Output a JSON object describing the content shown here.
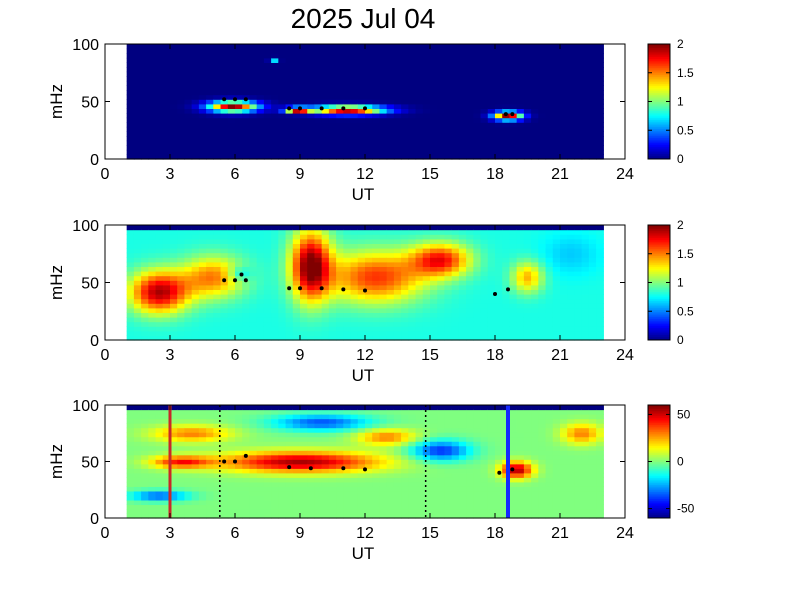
{
  "figure": {
    "title": "2025 Jul 04"
  },
  "chart_data": [
    {
      "type": "heatmap",
      "xlabel": "UT",
      "ylabel": "mHz",
      "xlim": [
        0,
        24
      ],
      "ylim": [
        0,
        100
      ],
      "x_ticks": [
        "0",
        "3",
        "6",
        "9",
        "12",
        "15",
        "18",
        "21",
        "24"
      ],
      "y_ticks": [
        "0",
        "50",
        "100"
      ],
      "data_x_range": [
        1,
        23
      ],
      "colorbar": {
        "min": 0,
        "max": 2,
        "ticks": [
          "0",
          "0.5",
          "1",
          "1.5",
          "2"
        ]
      },
      "background_value": 0,
      "features": [
        {
          "ut": 5.9,
          "mhz": 46,
          "ut_halfwidth": 1.2,
          "mhz_halfwidth": 5,
          "value": 2
        },
        {
          "ut": 8.9,
          "mhz": 43,
          "ut_halfwidth": 0.6,
          "mhz_halfwidth": 2.5,
          "value": 2
        },
        {
          "ut": 11.2,
          "mhz": 43,
          "ut_halfwidth": 1.8,
          "mhz_halfwidth": 4,
          "value": 2
        },
        {
          "ut": 18.6,
          "mhz": 38,
          "ut_halfwidth": 0.7,
          "mhz_halfwidth": 4,
          "value": 2
        },
        {
          "ut": 7.8,
          "mhz": 87,
          "ut_halfwidth": 0.2,
          "mhz_halfwidth": 1.5,
          "value": 1.2
        }
      ],
      "markers": [
        [
          5.5,
          52
        ],
        [
          6,
          52
        ],
        [
          6.5,
          52
        ],
        [
          8.5,
          44
        ],
        [
          9,
          44
        ],
        [
          10,
          44
        ],
        [
          11,
          44
        ],
        [
          12,
          44
        ],
        [
          18.5,
          39
        ],
        [
          18.8,
          39
        ]
      ]
    },
    {
      "type": "heatmap",
      "xlabel": "UT",
      "ylabel": "mHz",
      "xlim": [
        0,
        24
      ],
      "ylim": [
        0,
        100
      ],
      "x_ticks": [
        "0",
        "3",
        "6",
        "9",
        "12",
        "15",
        "18",
        "21",
        "24"
      ],
      "y_ticks": [
        "0",
        "50",
        "100"
      ],
      "data_x_range": [
        1,
        23
      ],
      "colorbar": {
        "min": 0,
        "max": 2,
        "ticks": [
          "0",
          "0.5",
          "1",
          "1.5",
          "2"
        ]
      },
      "background_value": 0.8,
      "features": [
        {
          "ut": 2.5,
          "mhz": 42,
          "ut_halfwidth": 1.5,
          "mhz_halfwidth": 20,
          "value": 1.9
        },
        {
          "ut": 5,
          "mhz": 55,
          "ut_halfwidth": 1.6,
          "mhz_halfwidth": 20,
          "value": 1.5
        },
        {
          "ut": 9.5,
          "mhz": 65,
          "ut_halfwidth": 1.0,
          "mhz_halfwidth": 33,
          "value": 2
        },
        {
          "ut": 12.5,
          "mhz": 55,
          "ut_halfwidth": 2.5,
          "mhz_halfwidth": 25,
          "value": 1.65
        },
        {
          "ut": 15.5,
          "mhz": 70,
          "ut_halfwidth": 1.5,
          "mhz_halfwidth": 16,
          "value": 1.7
        },
        {
          "ut": 19.5,
          "mhz": 55,
          "ut_halfwidth": 0.8,
          "mhz_halfwidth": 15,
          "value": 1.4
        },
        {
          "ut": 6.2,
          "mhz": 58,
          "ut_halfwidth": 0.6,
          "mhz_halfwidth": 7,
          "value": 0.5
        },
        {
          "ut": 21.5,
          "mhz": 75,
          "ut_halfwidth": 1.5,
          "mhz_halfwidth": 20,
          "value": 0.65
        }
      ],
      "markers": [
        [
          5.5,
          52
        ],
        [
          6,
          52
        ],
        [
          6.5,
          52
        ],
        [
          6.3,
          57
        ],
        [
          8.5,
          45
        ],
        [
          9,
          45
        ],
        [
          10,
          45
        ],
        [
          11,
          44
        ],
        [
          12,
          43
        ],
        [
          18,
          40
        ],
        [
          18.6,
          44
        ]
      ]
    },
    {
      "type": "heatmap",
      "xlabel": "UT",
      "ylabel": "mHz",
      "xlim": [
        0,
        24
      ],
      "ylim": [
        0,
        100
      ],
      "x_ticks": [
        "0",
        "3",
        "6",
        "9",
        "12",
        "15",
        "18",
        "21",
        "24"
      ],
      "y_ticks": [
        "0",
        "50",
        "100"
      ],
      "data_x_range": [
        1,
        23
      ],
      "colorbar": {
        "min": -60,
        "max": 60,
        "ticks": [
          "50",
          "0",
          "-50"
        ]
      },
      "background_value": 0,
      "features": [
        {
          "ut": 9,
          "mhz": 50,
          "ut_halfwidth": 4,
          "mhz_halfwidth": 10,
          "value": 55
        },
        {
          "ut": 3.5,
          "mhz": 50,
          "ut_halfwidth": 1.5,
          "mhz_halfwidth": 6,
          "value": 40
        },
        {
          "ut": 19,
          "mhz": 43,
          "ut_halfwidth": 0.8,
          "mhz_halfwidth": 8,
          "value": 55
        },
        {
          "ut": 15.5,
          "mhz": 60,
          "ut_halfwidth": 1.5,
          "mhz_halfwidth": 10,
          "value": -40
        },
        {
          "ut": 10,
          "mhz": 85,
          "ut_halfwidth": 2.5,
          "mhz_halfwidth": 8,
          "value": -35
        },
        {
          "ut": 4,
          "mhz": 75,
          "ut_halfwidth": 2,
          "mhz_halfwidth": 8,
          "value": 30
        },
        {
          "ut": 13,
          "mhz": 72,
          "ut_halfwidth": 1.5,
          "mhz_halfwidth": 8,
          "value": 30
        },
        {
          "ut": 2.5,
          "mhz": 20,
          "ut_halfwidth": 1.5,
          "mhz_halfwidth": 5,
          "value": -35
        },
        {
          "ut": 22,
          "mhz": 75,
          "ut_halfwidth": 1,
          "mhz_halfwidth": 10,
          "value": 30
        }
      ],
      "markers": [
        [
          5.5,
          50
        ],
        [
          6,
          50
        ],
        [
          6.5,
          55
        ],
        [
          8.5,
          45
        ],
        [
          9.5,
          44
        ],
        [
          11,
          44
        ],
        [
          12,
          43
        ],
        [
          18.2,
          40
        ],
        [
          18.8,
          43
        ]
      ],
      "vlines": [
        {
          "ut": 3,
          "color": "#c82828",
          "style": "solid",
          "width": 3
        },
        {
          "ut": 5.3,
          "color": "#000000",
          "style": "dotted",
          "width": 1.5
        },
        {
          "ut": 14.8,
          "color": "#000000",
          "style": "dotted",
          "width": 1.5
        },
        {
          "ut": 18.6,
          "color": "#1428ff",
          "style": "solid",
          "width": 4
        }
      ]
    }
  ]
}
